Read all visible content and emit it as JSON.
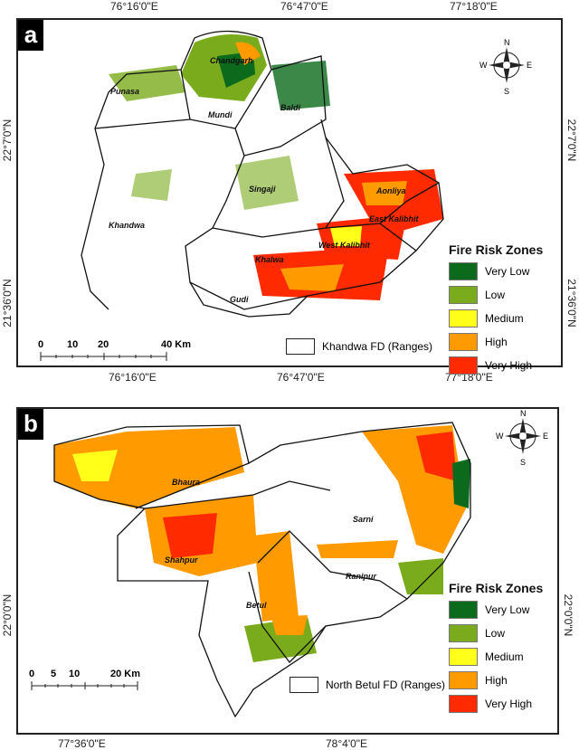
{
  "panel_a": {
    "label": "a",
    "top_ticks": [
      "76°16'0\"E",
      "76°47'0\"E",
      "77°18'0\"E"
    ],
    "bottom_ticks": [
      "76°16'0\"E",
      "76°47'0\"E",
      "77°18'0\"E"
    ],
    "left_ticks": [
      "22°7'0\"N",
      "21°36'0\"N"
    ],
    "right_ticks": [
      "22°7'0\"N",
      "21°36'0\"N"
    ],
    "ranges": [
      "Chandgarh",
      "Punasa",
      "Mundi",
      "Baldi",
      "Singaji",
      "Aonliya",
      "East Kalibhit",
      "Khandwa",
      "West Kalibhit",
      "Khalwa",
      "Gudi"
    ],
    "scale": {
      "labels": [
        "0",
        "10",
        "20",
        "40 Km"
      ]
    },
    "boundary_legend": "Khandwa FD (Ranges)",
    "compass": {
      "n": "N",
      "s": "S",
      "e": "E",
      "w": "W"
    }
  },
  "panel_b": {
    "label": "b",
    "bottom_ticks": [
      "77°36'0\"E",
      "78°4'0\"E"
    ],
    "left_ticks": [
      "22°0'0\"N"
    ],
    "right_ticks": [
      "22°0'0\"N"
    ],
    "ranges": [
      "Bhaura",
      "Sarni",
      "Shahpur",
      "Ranipur",
      "Betul"
    ],
    "scale": {
      "labels": [
        "0",
        "5",
        "10",
        "20 Km"
      ]
    },
    "boundary_legend": "North Betul FD (Ranges)",
    "compass": {
      "n": "N",
      "s": "S",
      "e": "E",
      "w": "W"
    }
  },
  "legend": {
    "title": "Fire Risk Zones",
    "items": [
      {
        "label": "Very Low",
        "color": "#0b6a1c"
      },
      {
        "label": "Low",
        "color": "#7aab1c"
      },
      {
        "label": "Medium",
        "color": "#ffff1a"
      },
      {
        "label": "High",
        "color": "#ff9a00"
      },
      {
        "label": "Very High",
        "color": "#ff2a00"
      }
    ]
  }
}
